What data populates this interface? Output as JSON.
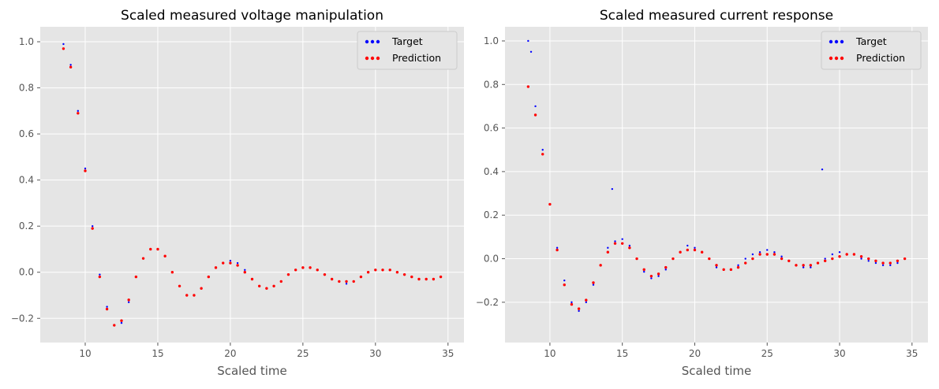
{
  "chart_data": [
    {
      "type": "scatter",
      "title": "Scaled measured voltage manipulation",
      "xlabel": "Scaled time",
      "ylabel": "",
      "xlim": [
        6.9,
        36.1
      ],
      "ylim": [
        -0.305,
        1.065
      ],
      "xticks": [
        10,
        15,
        20,
        25,
        30,
        35
      ],
      "yticks": [
        -0.2,
        0.0,
        0.2,
        0.4,
        0.6,
        0.8,
        1.0
      ],
      "ytick_labels": [
        "−0.2",
        "0.0",
        "0.2",
        "0.4",
        "0.6",
        "0.8",
        "1.0"
      ],
      "grid": true,
      "legend_position": "top-right",
      "series": [
        {
          "name": "Target",
          "color": "#0000ff",
          "x": [
            8.5,
            9.0,
            9.5,
            10.0,
            10.5,
            11.0,
            11.5,
            12.0,
            12.5,
            13.0,
            13.5,
            14.0,
            14.5,
            15.0,
            15.5,
            16.0,
            16.5,
            17.0,
            17.5,
            18.0,
            18.5,
            19.0,
            19.5,
            20.0,
            20.5,
            21.0,
            21.5,
            22.0,
            22.5,
            23.0,
            23.5,
            24.0,
            24.5,
            25.0,
            25.5,
            26.0,
            26.5,
            27.0,
            27.5,
            28.0,
            28.5,
            29.0,
            29.5,
            30.0,
            30.5,
            31.0,
            31.5,
            32.0,
            32.5,
            33.0,
            33.5,
            34.0,
            34.5
          ],
          "y": [
            0.99,
            0.9,
            0.7,
            0.45,
            0.2,
            -0.01,
            -0.15,
            -0.23,
            -0.22,
            -0.13,
            -0.02,
            0.06,
            0.1,
            0.1,
            0.07,
            0.0,
            -0.06,
            -0.1,
            -0.1,
            -0.07,
            -0.02,
            0.02,
            0.04,
            0.05,
            0.04,
            0.01,
            -0.03,
            -0.06,
            -0.07,
            -0.06,
            -0.04,
            -0.01,
            0.01,
            0.02,
            0.02,
            0.01,
            -0.01,
            -0.03,
            -0.04,
            -0.05,
            -0.04,
            -0.02,
            0.0,
            0.01,
            0.01,
            0.01,
            0.0,
            -0.01,
            -0.02,
            -0.03,
            -0.03,
            -0.03,
            -0.02
          ]
        },
        {
          "name": "Prediction",
          "color": "#ff0000",
          "x": [
            8.5,
            9.0,
            9.5,
            10.0,
            10.5,
            11.0,
            11.5,
            12.0,
            12.5,
            13.0,
            13.5,
            14.0,
            14.5,
            15.0,
            15.5,
            16.0,
            16.5,
            17.0,
            17.5,
            18.0,
            18.5,
            19.0,
            19.5,
            20.0,
            20.5,
            21.0,
            21.5,
            22.0,
            22.5,
            23.0,
            23.5,
            24.0,
            24.5,
            25.0,
            25.5,
            26.0,
            26.5,
            27.0,
            27.5,
            28.0,
            28.5,
            29.0,
            29.5,
            30.0,
            30.5,
            31.0,
            31.5,
            32.0,
            32.5,
            33.0,
            33.5,
            34.0,
            34.5
          ],
          "y": [
            0.97,
            0.89,
            0.69,
            0.44,
            0.19,
            -0.02,
            -0.16,
            -0.23,
            -0.21,
            -0.12,
            -0.02,
            0.06,
            0.1,
            0.1,
            0.07,
            0.0,
            -0.06,
            -0.1,
            -0.1,
            -0.07,
            -0.02,
            0.02,
            0.04,
            0.04,
            0.03,
            0.0,
            -0.03,
            -0.06,
            -0.07,
            -0.06,
            -0.04,
            -0.01,
            0.01,
            0.02,
            0.02,
            0.01,
            -0.01,
            -0.03,
            -0.04,
            -0.04,
            -0.04,
            -0.02,
            0.0,
            0.01,
            0.01,
            0.01,
            0.0,
            -0.01,
            -0.02,
            -0.03,
            -0.03,
            -0.03,
            -0.02
          ]
        }
      ]
    },
    {
      "type": "scatter",
      "title": "Scaled measured current response",
      "xlabel": "Scaled time",
      "ylabel": "",
      "xlim": [
        6.9,
        36.1
      ],
      "ylim": [
        -0.385,
        1.065
      ],
      "xticks": [
        10,
        15,
        20,
        25,
        30,
        35
      ],
      "yticks": [
        -0.2,
        0.0,
        0.2,
        0.4,
        0.6,
        0.8,
        1.0
      ],
      "ytick_labels": [
        "−0.2",
        "0.0",
        "0.2",
        "0.4",
        "0.6",
        "0.8",
        "1.0"
      ],
      "grid": true,
      "legend_position": "top-right",
      "series": [
        {
          "name": "Target",
          "color": "#0000ff",
          "x": [
            8.5,
            8.7,
            9.0,
            9.5,
            10.0,
            10.5,
            11.0,
            11.5,
            12.0,
            12.5,
            13.0,
            13.5,
            14.0,
            14.3,
            14.5,
            15.0,
            15.5,
            16.0,
            16.5,
            17.0,
            17.5,
            18.0,
            18.5,
            19.0,
            19.5,
            20.0,
            20.5,
            21.0,
            21.5,
            22.0,
            22.5,
            23.0,
            23.5,
            24.0,
            24.5,
            25.0,
            25.5,
            26.0,
            26.5,
            27.0,
            27.5,
            28.0,
            28.5,
            28.8,
            29.0,
            29.5,
            30.0,
            30.5,
            31.0,
            31.5,
            32.0,
            32.5,
            33.0,
            33.5,
            34.0,
            34.5
          ],
          "y": [
            1.0,
            0.95,
            0.7,
            0.5,
            0.25,
            0.05,
            -0.1,
            -0.2,
            -0.24,
            -0.2,
            -0.12,
            -0.03,
            0.05,
            0.32,
            0.08,
            0.09,
            0.06,
            0.0,
            -0.06,
            -0.09,
            -0.08,
            -0.05,
            0.0,
            0.03,
            0.06,
            0.05,
            0.03,
            0.0,
            -0.04,
            -0.05,
            -0.05,
            -0.03,
            0.0,
            0.02,
            0.03,
            0.04,
            0.03,
            0.01,
            -0.01,
            -0.03,
            -0.04,
            -0.04,
            -0.02,
            0.41,
            0.0,
            0.02,
            0.03,
            0.02,
            0.02,
            0.0,
            -0.01,
            -0.02,
            -0.03,
            -0.03,
            -0.02,
            0.0
          ]
        },
        {
          "name": "Prediction",
          "color": "#ff0000",
          "x": [
            8.5,
            9.0,
            9.5,
            10.0,
            10.5,
            11.0,
            11.5,
            12.0,
            12.5,
            13.0,
            13.5,
            14.0,
            14.5,
            15.0,
            15.5,
            16.0,
            16.5,
            17.0,
            17.5,
            18.0,
            18.5,
            19.0,
            19.5,
            20.0,
            20.5,
            21.0,
            21.5,
            22.0,
            22.5,
            23.0,
            23.5,
            24.0,
            24.5,
            25.0,
            25.5,
            26.0,
            26.5,
            27.0,
            27.5,
            28.0,
            28.5,
            29.0,
            29.5,
            30.0,
            30.5,
            31.0,
            31.5,
            32.0,
            32.5,
            33.0,
            33.5,
            34.0,
            34.5
          ],
          "y": [
            0.79,
            0.66,
            0.48,
            0.25,
            0.04,
            -0.12,
            -0.21,
            -0.23,
            -0.19,
            -0.11,
            -0.03,
            0.03,
            0.07,
            0.07,
            0.05,
            0.0,
            -0.05,
            -0.08,
            -0.07,
            -0.04,
            0.0,
            0.03,
            0.04,
            0.04,
            0.03,
            0.0,
            -0.03,
            -0.05,
            -0.05,
            -0.04,
            -0.02,
            0.0,
            0.02,
            0.02,
            0.02,
            0.0,
            -0.01,
            -0.03,
            -0.03,
            -0.03,
            -0.02,
            -0.01,
            0.0,
            0.01,
            0.02,
            0.02,
            0.01,
            0.0,
            -0.01,
            -0.02,
            -0.02,
            -0.01,
            0.0
          ]
        }
      ]
    }
  ]
}
